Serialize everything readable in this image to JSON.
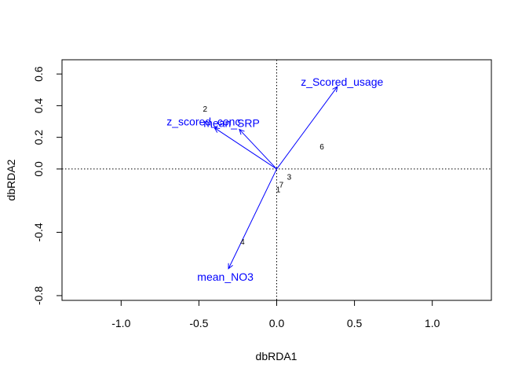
{
  "chart_data": {
    "type": "scatter",
    "subtype": "biplot",
    "title": "",
    "xlabel": "dbRDA1",
    "ylabel": "dbRDA2",
    "xlim": [
      -1.38,
      1.38
    ],
    "ylim": [
      -0.83,
      0.69
    ],
    "xticks": [
      -1.0,
      -0.5,
      0.0,
      0.5,
      1.0
    ],
    "xtick_labels": [
      "-1.0",
      "-0.5",
      "0.0",
      "0.5",
      "1.0"
    ],
    "yticks": [
      -0.8,
      -0.4,
      0.0,
      0.2,
      0.4,
      0.6
    ],
    "ytick_labels": [
      "-0.8",
      "-0.4",
      "0.0",
      "0.2",
      "0.4",
      "0.6"
    ],
    "reference_lines": {
      "x": 0,
      "y": 0,
      "style": "dotted"
    },
    "vector_color": "#0000ff",
    "site_color": "#000000",
    "sites": [
      {
        "label": "1",
        "x": 0.01,
        "y": -0.13
      },
      {
        "label": "2",
        "x": -0.46,
        "y": 0.38
      },
      {
        "label": "3",
        "x": 0.08,
        "y": -0.05
      },
      {
        "label": "4",
        "x": -0.22,
        "y": -0.46
      },
      {
        "label": "6",
        "x": 0.29,
        "y": 0.14
      },
      {
        "label": "7",
        "x": 0.03,
        "y": -0.1
      }
    ],
    "vectors": [
      {
        "name": "z_Scored_usage",
        "x": 0.39,
        "y": 0.52,
        "label_x": 0.42,
        "label_y": 0.55
      },
      {
        "name": "mean_SRP",
        "x": -0.24,
        "y": 0.25,
        "label_x": -0.29,
        "label_y": 0.29
      },
      {
        "name": "z_scored_conc",
        "x": -0.4,
        "y": 0.26,
        "label_x": -0.47,
        "label_y": 0.3
      },
      {
        "name": "mean_NO3",
        "x": -0.31,
        "y": -0.63,
        "label_x": -0.33,
        "label_y": -0.68
      }
    ]
  }
}
